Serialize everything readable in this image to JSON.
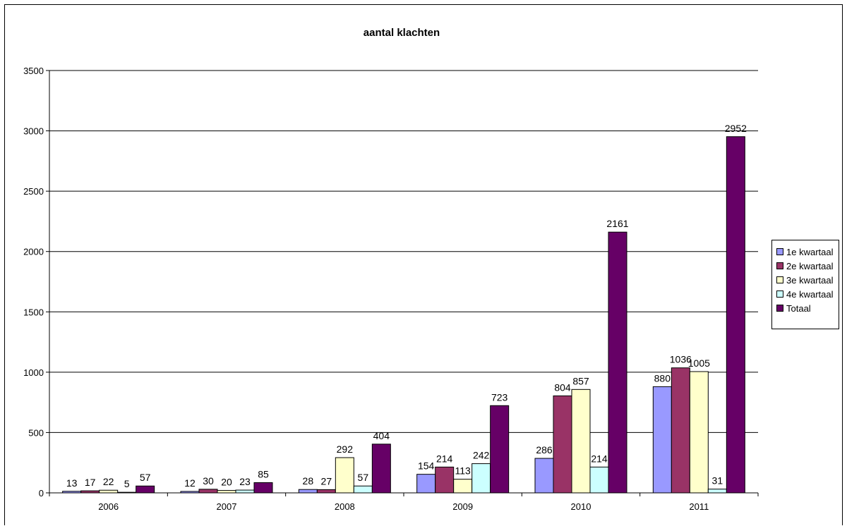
{
  "chart_data": {
    "type": "bar",
    "title": "aantal klachten",
    "categories": [
      "2006",
      "2007",
      "2008",
      "2009",
      "2010",
      "2011"
    ],
    "series": [
      {
        "name": "1e kwartaal",
        "color": "#9999ff",
        "values": [
          13,
          12,
          28,
          154,
          286,
          880
        ]
      },
      {
        "name": "2e kwartaal",
        "color": "#993366",
        "values": [
          17,
          30,
          27,
          214,
          804,
          1036
        ]
      },
      {
        "name": "3e kwartaal",
        "color": "#ffffcc",
        "values": [
          22,
          20,
          292,
          113,
          857,
          1005
        ]
      },
      {
        "name": "4e kwartaal",
        "color": "#ccffff",
        "values": [
          5,
          23,
          57,
          242,
          214,
          31
        ]
      },
      {
        "name": "Totaal",
        "color": "#660066",
        "values": [
          57,
          85,
          404,
          723,
          2161,
          2952
        ]
      }
    ],
    "yticks": [
      "0",
      "500",
      "1000",
      "1500",
      "2000",
      "2500",
      "3000",
      "3500"
    ],
    "ylim": [
      0,
      3500
    ],
    "grid": true,
    "legend_position": "right"
  }
}
